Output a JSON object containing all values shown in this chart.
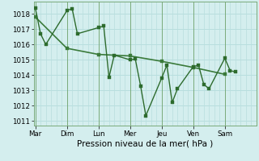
{
  "xlabel": "Pression niveau de la mer( hPa )",
  "bg_color": "#d4eeee",
  "grid_color": "#b8dede",
  "line_color": "#2d6b2d",
  "line_color2": "#3a7a3a",
  "ylim": [
    1010.7,
    1018.8
  ],
  "yticks": [
    1011,
    1012,
    1013,
    1014,
    1015,
    1016,
    1017,
    1018
  ],
  "day_labels": [
    "Mar",
    "Dim",
    "Lun",
    "Mer",
    "Jeu",
    "Ven",
    "Sam"
  ],
  "day_positions": [
    0,
    6,
    12,
    18,
    24,
    30,
    36
  ],
  "xlim": [
    -0.3,
    42
  ],
  "series1_x": [
    0,
    1,
    2,
    6,
    7,
    8,
    12,
    13,
    14,
    15,
    18,
    19,
    20,
    21,
    24,
    25,
    26,
    27,
    30,
    31,
    32,
    33,
    36,
    37,
    38
  ],
  "series1_y": [
    1018.4,
    1016.7,
    1016.0,
    1018.2,
    1018.35,
    1016.7,
    1017.1,
    1017.2,
    1013.85,
    1015.3,
    1015.0,
    1015.05,
    1013.3,
    1011.35,
    1013.8,
    1014.65,
    1012.2,
    1013.1,
    1014.55,
    1014.65,
    1013.4,
    1013.1,
    1015.1,
    1014.3,
    1014.2
  ],
  "series2_x": [
    0,
    6,
    12,
    18,
    24,
    30,
    36
  ],
  "series2_y": [
    1017.8,
    1015.75,
    1015.35,
    1015.25,
    1014.9,
    1014.5,
    1014.05
  ],
  "marker_size": 2.5,
  "lw1": 1.0,
  "lw2": 1.2,
  "sep_color": "#7aaa7a",
  "sep_lw": 0.7,
  "xlabel_fontsize": 7.5,
  "tick_fontsize": 6.2
}
